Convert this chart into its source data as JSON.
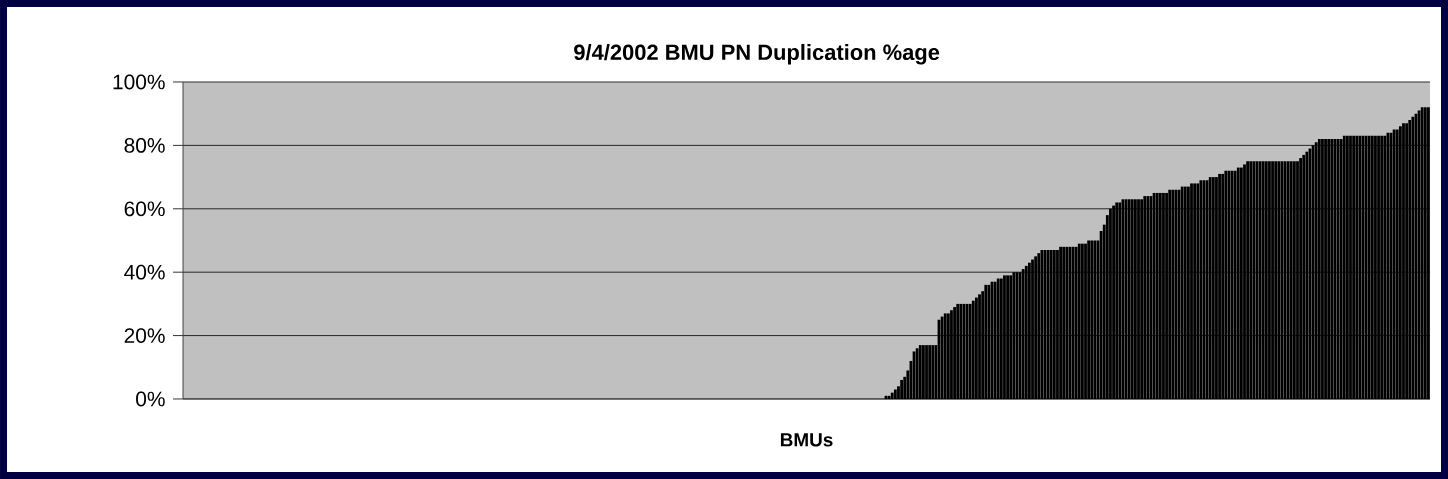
{
  "chart_data": {
    "type": "bar",
    "title": "9/4/2002 BMU PN Duplication %age",
    "xlabel": "BMUs",
    "categories": [
      null,
      null,
      null,
      null,
      null,
      null,
      null,
      null,
      null,
      null,
      null,
      null,
      null,
      null,
      null,
      null,
      null,
      null,
      null,
      null,
      null,
      null,
      null,
      null,
      null,
      null,
      null,
      null,
      null,
      null,
      null,
      null,
      null,
      null,
      null,
      null,
      null,
      null,
      null,
      null,
      null,
      null,
      null,
      null,
      null,
      null,
      null,
      null,
      null,
      null,
      null,
      null,
      null,
      null,
      null,
      null,
      null,
      null,
      null,
      null,
      null,
      null,
      null,
      null,
      null,
      null,
      null,
      null,
      null,
      null,
      null,
      null,
      null,
      null,
      null,
      null,
      null,
      null,
      null,
      null,
      null,
      null,
      null,
      null,
      null,
      null,
      null,
      null,
      null,
      null,
      null,
      null,
      null,
      null,
      null,
      null,
      null,
      null,
      null,
      null,
      null,
      null,
      null,
      null,
      null,
      null,
      null,
      null,
      null,
      null,
      null,
      null,
      null,
      null,
      null,
      null,
      null,
      null,
      null,
      null,
      null,
      null,
      null,
      null,
      null,
      null,
      null,
      null,
      null,
      null,
      null,
      null,
      null,
      null,
      null,
      null,
      null,
      null,
      null,
      null,
      null,
      null,
      null,
      null,
      null,
      null,
      null,
      null,
      null,
      null,
      null,
      null,
      null,
      null,
      null,
      null,
      null,
      null,
      null,
      null,
      null,
      null,
      null,
      null,
      null,
      null,
      null,
      null,
      null,
      null,
      null,
      null,
      null,
      null,
      null,
      null,
      null,
      null,
      null,
      null,
      null,
      null,
      null,
      null,
      null,
      null,
      null,
      null,
      null,
      null,
      null,
      null,
      null,
      null,
      null,
      null,
      null,
      null,
      null,
      null,
      null,
      null,
      null,
      null,
      null,
      null,
      null,
      null,
      null,
      null,
      null,
      null,
      null,
      null,
      null,
      null,
      null,
      null,
      null,
      null,
      null,
      null,
      null,
      null,
      null,
      null,
      null,
      null,
      null,
      null,
      null,
      null,
      null,
      null,
      null,
      null,
      null,
      null,
      null,
      null,
      null,
      null,
      null,
      null,
      null,
      null,
      null,
      null,
      null,
      null,
      null,
      null,
      null,
      null,
      null,
      null,
      null,
      null,
      null,
      null,
      null,
      null,
      null,
      null,
      null,
      null,
      null,
      null,
      null,
      null,
      null,
      null,
      null,
      null,
      null,
      null,
      null,
      null,
      null,
      null,
      null,
      null,
      null,
      null,
      null,
      null,
      null,
      null,
      null,
      null,
      null,
      null,
      null,
      null,
      null,
      null,
      null,
      null,
      null,
      null,
      null,
      null,
      null,
      null,
      null,
      null,
      null,
      null,
      null,
      null,
      null,
      null,
      null,
      null,
      null,
      null,
      null,
      null,
      null,
      null,
      null,
      null,
      null,
      null,
      null,
      null,
      null,
      null,
      null,
      null,
      null,
      null,
      null,
      null,
      null,
      null,
      null,
      null,
      null,
      null,
      null,
      null,
      null,
      null,
      null,
      null,
      null,
      null,
      null,
      null,
      null,
      null,
      null,
      null,
      null,
      null,
      null,
      null,
      null,
      null,
      null,
      null,
      null,
      null,
      null,
      null,
      null,
      null,
      null,
      null,
      null,
      null,
      null,
      null,
      null,
      null,
      null,
      null,
      null,
      null,
      null,
      null,
      null,
      null,
      null,
      null,
      null,
      null,
      null,
      null,
      null,
      null,
      null,
      null,
      null,
      null,
      null,
      null,
      null,
      null
    ],
    "values": [
      0,
      0,
      0,
      0,
      0,
      0,
      0,
      0,
      0,
      0,
      0,
      0,
      0,
      0,
      0,
      0,
      0,
      0,
      0,
      0,
      0,
      0,
      0,
      0,
      0,
      0,
      0,
      0,
      0,
      0,
      0,
      0,
      0,
      0,
      0,
      0,
      0,
      0,
      0,
      0,
      0,
      0,
      0,
      0,
      0,
      0,
      0,
      0,
      0,
      0,
      0,
      0,
      0,
      0,
      0,
      0,
      0,
      0,
      0,
      0,
      0,
      0,
      0,
      0,
      0,
      0,
      0,
      0,
      0,
      0,
      0,
      0,
      0,
      0,
      0,
      0,
      0,
      0,
      0,
      0,
      0,
      0,
      0,
      0,
      0,
      0,
      0,
      0,
      0,
      0,
      0,
      0,
      0,
      0,
      0,
      0,
      0,
      0,
      0,
      0,
      0,
      0,
      0,
      0,
      0,
      0,
      0,
      0,
      0,
      0,
      0,
      0,
      0,
      0,
      0,
      0,
      0,
      0,
      0,
      0,
      0,
      0,
      0,
      0,
      0,
      0,
      0,
      0,
      0,
      0,
      0,
      0,
      0,
      0,
      0,
      0,
      0,
      0,
      0,
      0,
      0,
      0,
      0,
      0,
      0,
      0,
      0,
      0,
      0,
      0,
      0,
      0,
      0,
      0,
      0,
      0,
      0,
      0,
      0,
      0,
      0,
      0,
      0,
      0,
      0,
      0,
      0,
      0,
      0,
      0,
      0,
      0,
      0,
      0,
      0,
      0,
      0,
      0,
      0,
      0,
      0,
      0,
      0,
      0,
      0,
      0,
      0,
      0,
      0,
      0,
      0,
      0,
      0,
      0,
      0,
      0,
      0,
      0,
      0,
      0,
      0,
      0,
      0,
      0,
      0,
      0,
      0,
      0,
      0,
      0,
      0,
      0,
      0,
      0,
      0,
      0,
      0,
      0,
      0,
      0,
      0,
      0,
      0,
      0,
      0,
      1,
      1,
      2,
      3,
      4,
      6,
      7,
      9,
      12,
      15,
      16,
      17,
      17,
      17,
      17,
      17,
      17,
      25,
      26,
      27,
      27,
      28,
      29,
      30,
      30,
      30,
      30,
      30,
      31,
      32,
      33,
      34,
      36,
      36,
      37,
      37,
      38,
      38,
      39,
      39,
      39,
      40,
      40,
      40,
      41,
      42,
      43,
      44,
      45,
      46,
      47,
      47,
      47,
      47,
      47,
      47,
      48,
      48,
      48,
      48,
      48,
      48,
      49,
      49,
      49,
      50,
      50,
      50,
      50,
      53,
      55,
      58,
      60,
      61,
      62,
      62,
      63,
      63,
      63,
      63,
      63,
      63,
      63,
      64,
      64,
      64,
      65,
      65,
      65,
      65,
      65,
      66,
      66,
      66,
      66,
      67,
      67,
      67,
      68,
      68,
      68,
      69,
      69,
      69,
      70,
      70,
      70,
      71,
      71,
      72,
      72,
      72,
      72,
      73,
      73,
      74,
      75,
      75,
      75,
      75,
      75,
      75,
      75,
      75,
      75,
      75,
      75,
      75,
      75,
      75,
      75,
      75,
      75,
      76,
      77,
      78,
      79,
      80,
      81,
      82,
      82,
      82,
      82,
      82,
      82,
      82,
      82,
      83,
      83,
      83,
      83,
      83,
      83,
      83,
      83,
      83,
      83,
      83,
      83,
      83,
      83,
      84,
      84,
      85,
      85,
      86,
      87,
      87,
      88,
      89,
      90,
      91,
      92,
      92,
      92
    ],
    "color": "#000000",
    "ylim": [
      0,
      100
    ],
    "yticks": [
      {
        "value": 0,
        "label": "0%"
      },
      {
        "value": 20,
        "label": "20%"
      },
      {
        "value": 40,
        "label": "40%"
      },
      {
        "value": 60,
        "label": "60%"
      },
      {
        "value": 80,
        "label": "80%"
      },
      {
        "value": 100,
        "label": "100%"
      }
    ],
    "grid": "y"
  }
}
